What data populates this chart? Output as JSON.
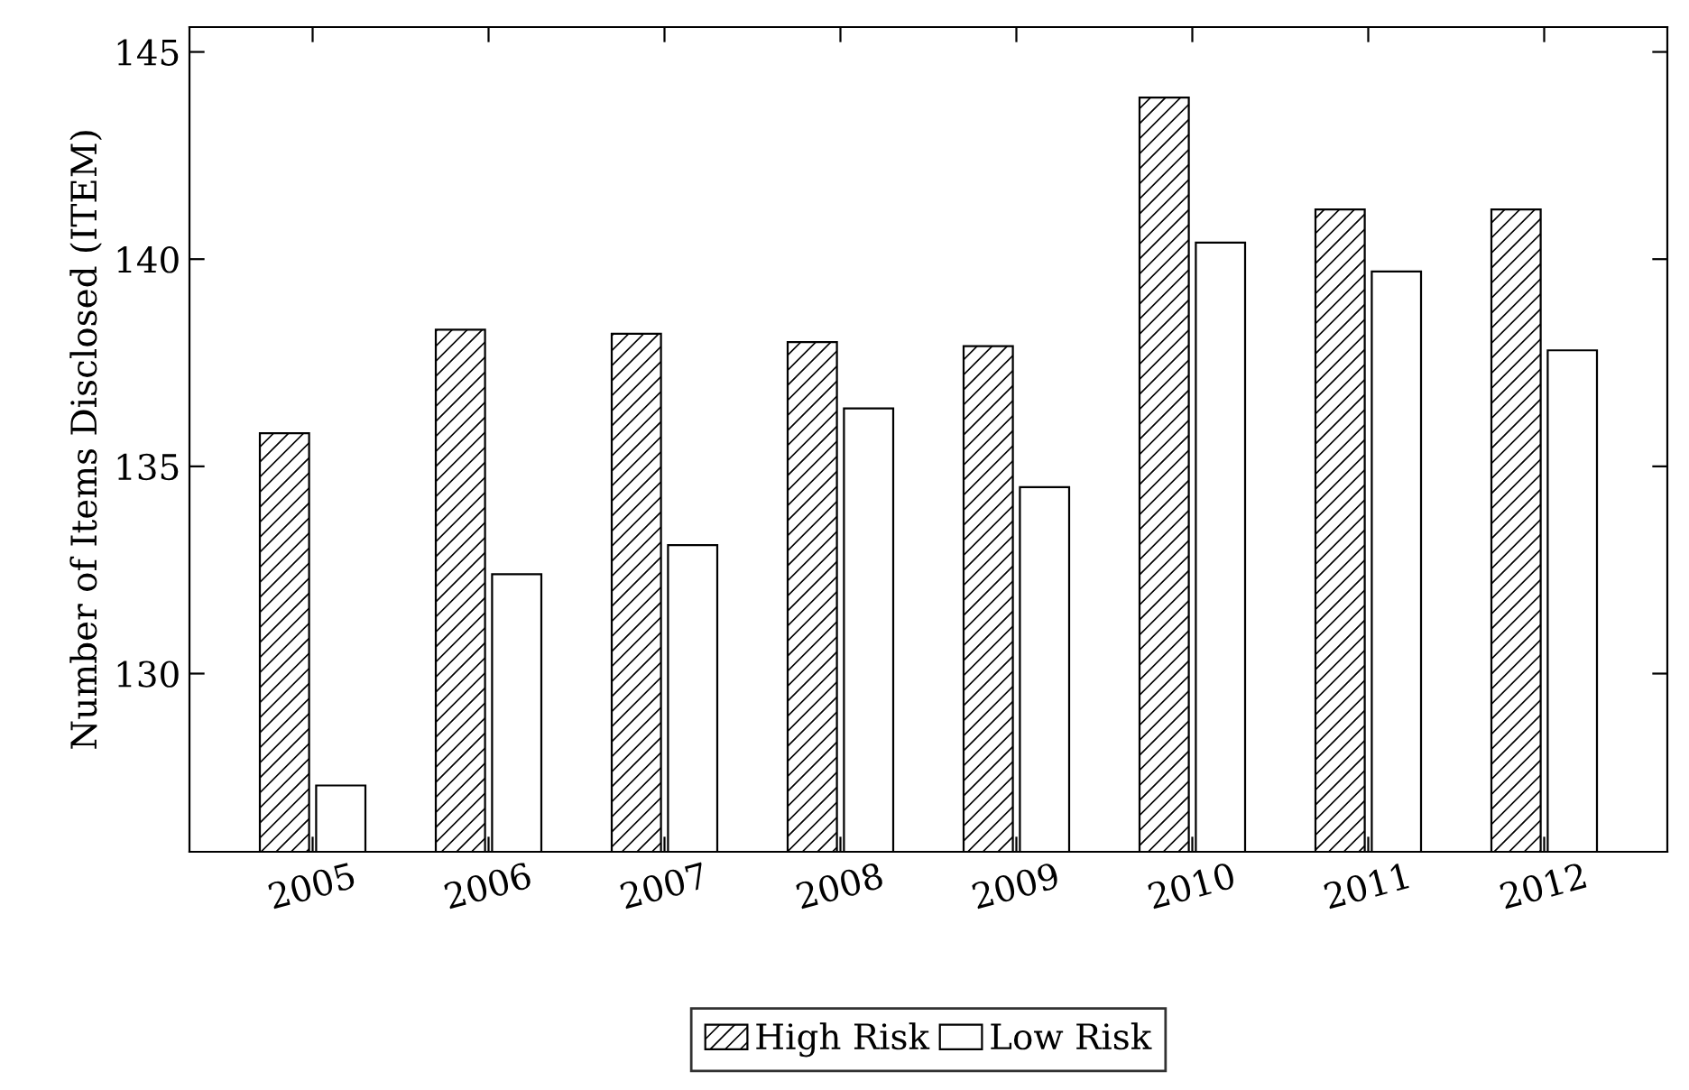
{
  "chart_data": {
    "type": "bar",
    "ylabel": "Number of Items Disclosed (ITEM)",
    "categories": [
      "2005",
      "2006",
      "2007",
      "2008",
      "2009",
      "2010",
      "2011",
      "2012"
    ],
    "series": [
      {
        "name": "High Risk",
        "color": "#000000",
        "values": [
          135.8,
          138.3,
          138.2,
          138.0,
          137.9,
          143.9,
          141.2,
          141.2
        ]
      },
      {
        "name": "Low Risk",
        "color": "#ffffff",
        "values": [
          127.3,
          132.4,
          133.1,
          136.4,
          134.5,
          140.4,
          139.7,
          137.8
        ]
      }
    ],
    "ylim": [
      125.7,
      145.6
    ],
    "yticks": [
      130,
      135,
      140,
      145
    ],
    "grid": false,
    "legend": "bottom"
  }
}
